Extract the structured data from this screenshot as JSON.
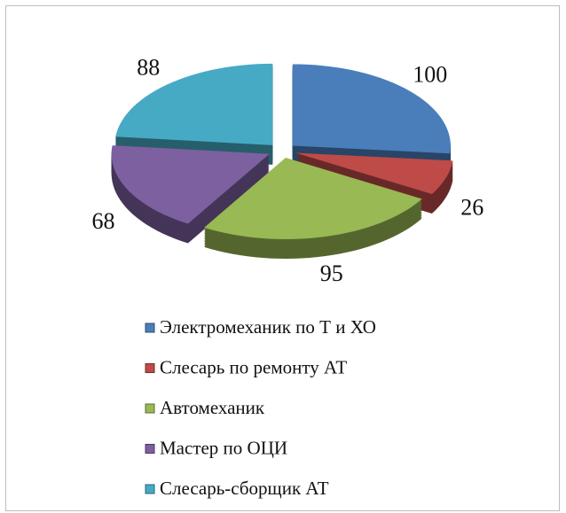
{
  "chart_data": {
    "type": "pie",
    "categories": [
      "Электромеханик по Т и ХО",
      "Слесарь по ремонту АТ",
      "Автомеханик",
      "Мастер по ОЦИ",
      "Слесарь-сборщик АТ"
    ],
    "values": [
      100,
      26,
      95,
      68,
      88
    ],
    "colors": [
      "#4a7ebb",
      "#be4b48",
      "#98b954",
      "#7d60a0",
      "#46aac5"
    ]
  }
}
